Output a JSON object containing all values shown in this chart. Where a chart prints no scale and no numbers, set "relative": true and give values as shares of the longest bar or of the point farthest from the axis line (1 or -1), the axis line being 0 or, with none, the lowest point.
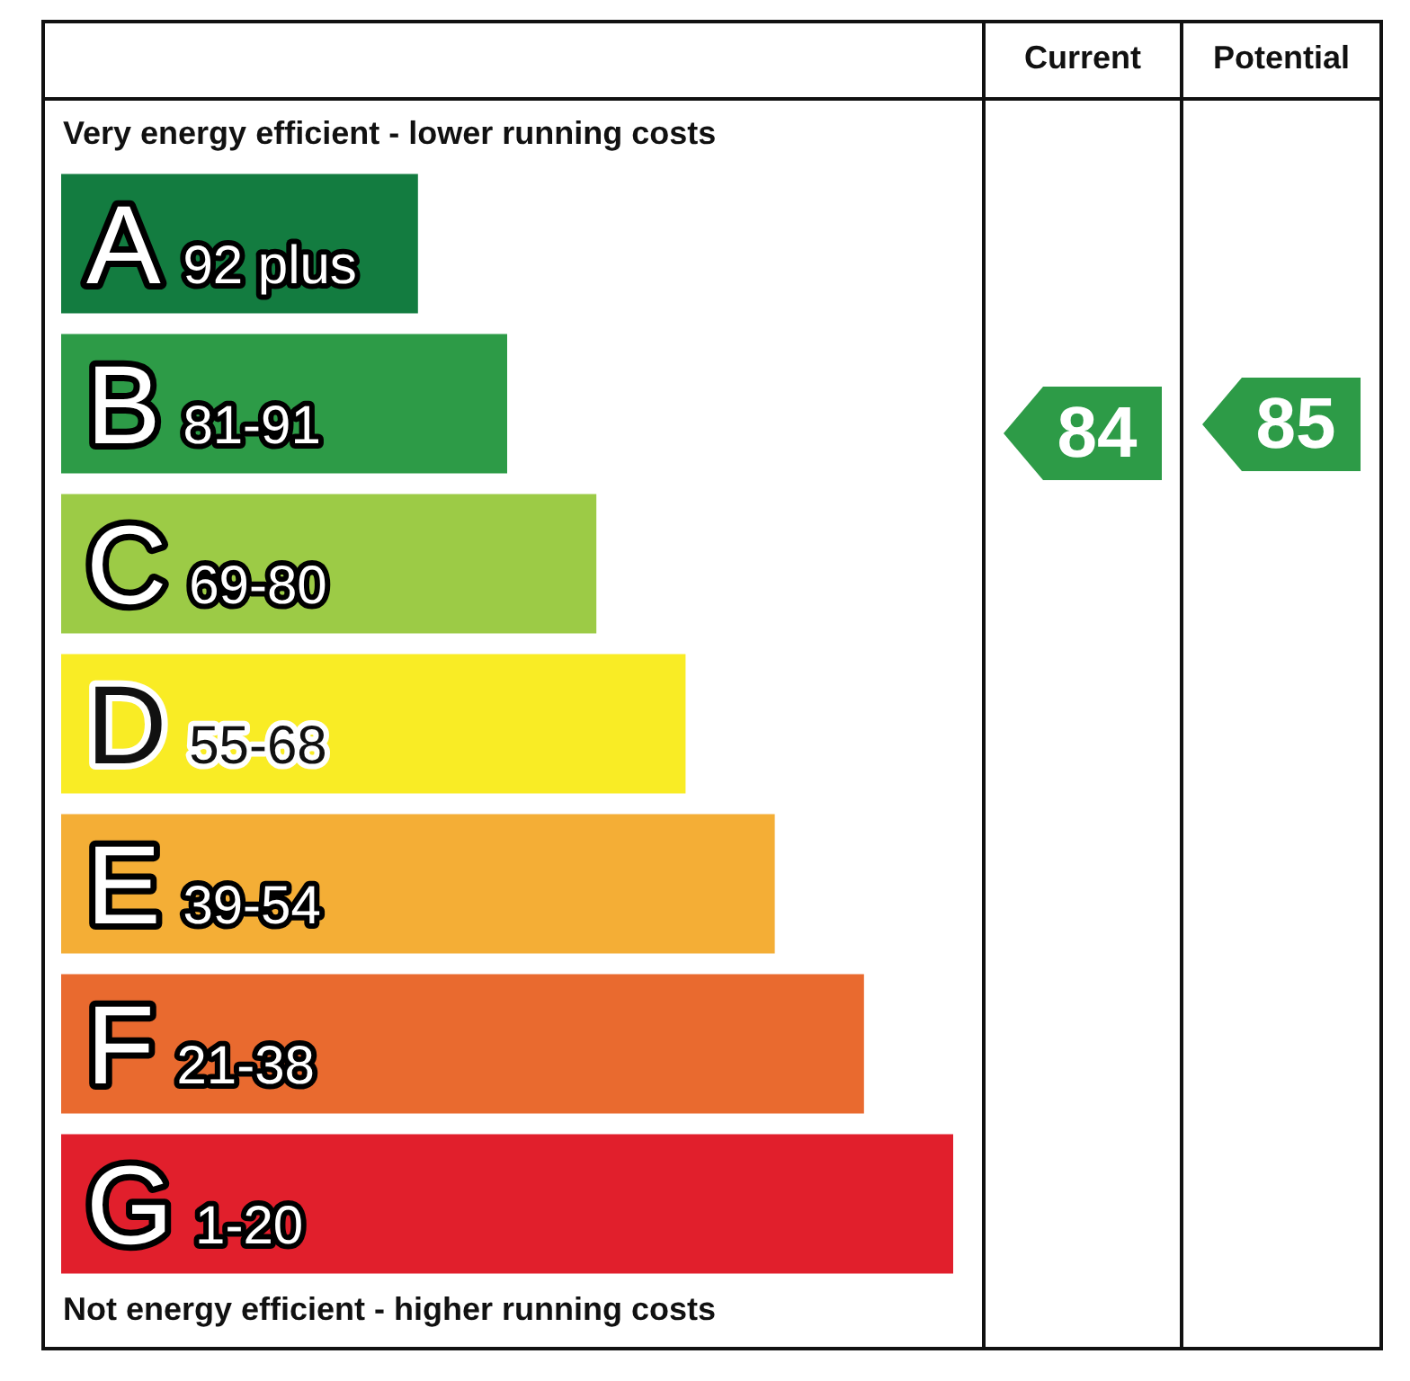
{
  "chart_data": {
    "type": "bar",
    "orientation": "horizontal",
    "relative": true,
    "title": "Very energy efficient - lower running costs",
    "categories": [
      "A 92 plus",
      "B 81-91",
      "C 69-80",
      "D 55-68",
      "E 39-54",
      "F 21-38",
      "G 1-20"
    ],
    "values": [
      0.4,
      0.5,
      0.6,
      0.7,
      0.8,
      0.9,
      1
    ],
    "colors": [
      "#137c40",
      "#2d9b47",
      "#9ccb46",
      "#f9ec25",
      "#f4ae36",
      "#e96a2f",
      "#e11f2c"
    ],
    "annotations": [
      "Not energy efficient - higher running costs",
      "Current",
      "Potential",
      "84",
      "85"
    ]
  }
}
